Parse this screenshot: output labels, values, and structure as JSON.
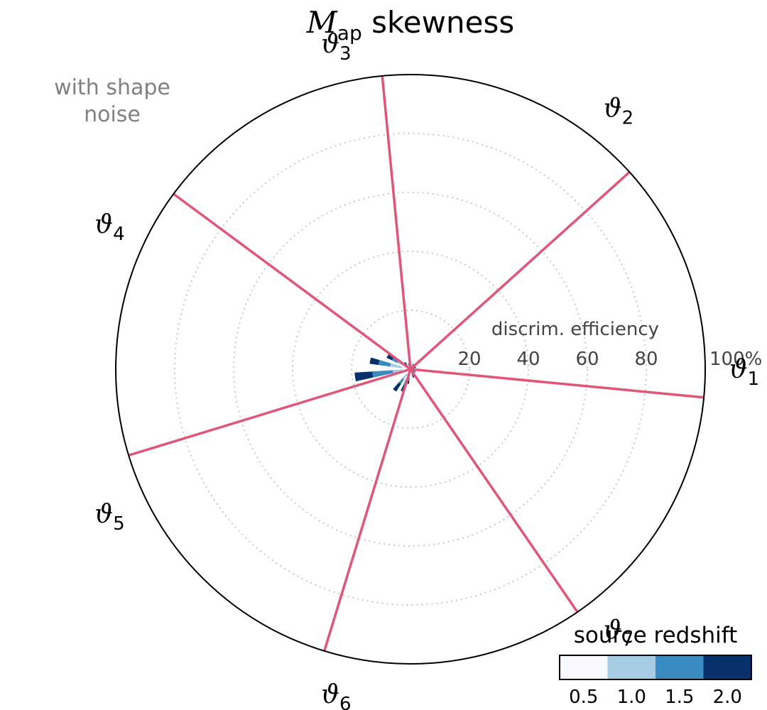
{
  "chart_data": {
    "type": "polar-bar",
    "title_symbol": "M",
    "title_subscript": "ap",
    "title_rest": "skewness",
    "annotation_lines": [
      "with shape",
      "noise"
    ],
    "radial_label": "discrim. efficiency",
    "radial_ticks": [
      "20",
      "40",
      "60",
      "80",
      "100%"
    ],
    "rlim": [
      0,
      100
    ],
    "grid": true,
    "angle_symbol": "ϑ",
    "directions": [
      {
        "sub": "1",
        "angle_deg": 0
      },
      {
        "sub": "2",
        "angle_deg": 51.43
      },
      {
        "sub": "3",
        "angle_deg": 102.86
      },
      {
        "sub": "4",
        "angle_deg": 154.29
      },
      {
        "sub": "5",
        "angle_deg": 205.71
      },
      {
        "sub": "6",
        "angle_deg": 257.14
      },
      {
        "sub": "7",
        "angle_deg": 308.57
      }
    ],
    "divider_angles_deg": [
      -5.5,
      42,
      95.5,
      143.5,
      197,
      253,
      304.5
    ],
    "divider_color": "#e05678",
    "colorbar": {
      "title": "source redshift",
      "ticks": [
        "0.5",
        "1.0",
        "1.5",
        "2.0"
      ],
      "colors": [
        "#f7fbff",
        "#a6cde3",
        "#3a8bc2",
        "#08306b"
      ]
    },
    "bars": [
      {
        "angle_deg": 150,
        "values": [
          3,
          5,
          7,
          9
        ]
      },
      {
        "angle_deg": 168,
        "values": [
          3,
          7,
          11,
          14
        ]
      },
      {
        "angle_deg": 188,
        "values": [
          3,
          6,
          13,
          19
        ]
      },
      {
        "angle_deg": 233,
        "values": [
          2,
          4,
          6,
          9
        ]
      },
      {
        "angle_deg": 250,
        "values": [
          2,
          4,
          6,
          8
        ]
      },
      {
        "angle_deg": 260,
        "values": [
          1,
          3,
          4,
          5
        ]
      },
      {
        "angle_deg": 130,
        "values": [
          1,
          2,
          3,
          3
        ]
      },
      {
        "angle_deg": 110,
        "values": [
          1,
          1,
          2,
          2
        ]
      },
      {
        "angle_deg": 60,
        "values": [
          1,
          1,
          1,
          2
        ]
      },
      {
        "angle_deg": 20,
        "values": [
          1,
          1,
          2,
          2
        ]
      },
      {
        "angle_deg": 330,
        "values": [
          1,
          1,
          2,
          2
        ]
      },
      {
        "angle_deg": 290,
        "values": [
          1,
          1,
          2,
          3
        ]
      }
    ]
  }
}
